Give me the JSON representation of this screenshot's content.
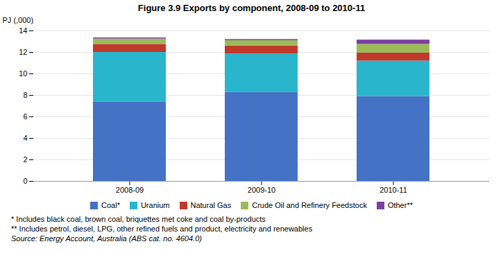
{
  "chart_data": {
    "type": "bar",
    "stacked": true,
    "title": "Figure 3.9 Exports by component, 2008-09 to 2010-11",
    "ylabel": "PJ (,000)",
    "categories": [
      "2008-09",
      "2009-10",
      "2010-11"
    ],
    "series": [
      {
        "name": "Coal*",
        "color": "#4472C4",
        "values": [
          7.4,
          8.3,
          7.9
        ]
      },
      {
        "name": "Uranium",
        "color": "#29B5CC",
        "values": [
          4.6,
          3.55,
          3.3
        ]
      },
      {
        "name": "Natural Gas",
        "color": "#C0392B",
        "values": [
          0.75,
          0.75,
          0.75
        ]
      },
      {
        "name": "Crude Oil and Refinery Feedstock",
        "color": "#9BBB59",
        "values": [
          0.5,
          0.5,
          0.8
        ]
      },
      {
        "name": "Other**",
        "color": "#7B3F9E",
        "values": [
          0.1,
          0.1,
          0.4
        ]
      }
    ],
    "ylim": [
      0,
      14
    ],
    "yticks": [
      0,
      2,
      4,
      6,
      8,
      10,
      12,
      14
    ],
    "grid": true,
    "legend": "bottom",
    "annotations": [
      "* Includes black coal, brown coal, briquettes met coke and coal by-products",
      "** Includes petrol, diesel, LPG, other refined fuels and product, electricity and renewables",
      "Source: Energy Account, Australia (ABS cat. no. 4604.0)"
    ]
  }
}
